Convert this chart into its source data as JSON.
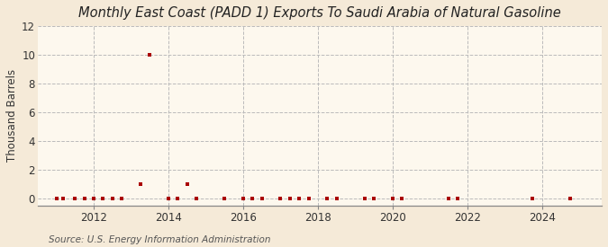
{
  "title": "Monthly East Coast (PADD 1) Exports To Saudi Arabia of Natural Gasoline",
  "ylabel": "Thousand Barrels",
  "source": "Source: U.S. Energy Information Administration",
  "background_color": "#f5ead8",
  "plot_bg_color": "#fdf8ee",
  "ylim": [
    -0.5,
    12
  ],
  "yticks": [
    0,
    2,
    4,
    6,
    8,
    10,
    12
  ],
  "xlim_start": 2010.5,
  "xlim_end": 2025.6,
  "xticks": [
    2012,
    2014,
    2016,
    2018,
    2020,
    2022,
    2024
  ],
  "marker_color": "#aa0000",
  "marker_size": 9,
  "data_points": [
    [
      2011.0,
      0
    ],
    [
      2011.17,
      0
    ],
    [
      2011.5,
      0
    ],
    [
      2011.75,
      0
    ],
    [
      2012.0,
      0
    ],
    [
      2012.25,
      0
    ],
    [
      2012.5,
      0
    ],
    [
      2012.75,
      0
    ],
    [
      2013.25,
      1
    ],
    [
      2013.5,
      10
    ],
    [
      2014.0,
      0
    ],
    [
      2014.25,
      0
    ],
    [
      2014.5,
      1
    ],
    [
      2014.75,
      0
    ],
    [
      2015.5,
      0
    ],
    [
      2016.0,
      0
    ],
    [
      2016.25,
      0
    ],
    [
      2016.5,
      0
    ],
    [
      2017.0,
      0
    ],
    [
      2017.25,
      0
    ],
    [
      2017.5,
      0
    ],
    [
      2017.75,
      0
    ],
    [
      2018.25,
      0
    ],
    [
      2018.5,
      0
    ],
    [
      2019.25,
      0
    ],
    [
      2019.5,
      0
    ],
    [
      2020.0,
      0
    ],
    [
      2020.25,
      0
    ],
    [
      2021.5,
      0
    ],
    [
      2021.75,
      0
    ],
    [
      2023.75,
      0
    ],
    [
      2024.75,
      0
    ]
  ],
  "title_fontsize": 10.5,
  "axis_fontsize": 8.5,
  "tick_fontsize": 8.5,
  "source_fontsize": 7.5
}
